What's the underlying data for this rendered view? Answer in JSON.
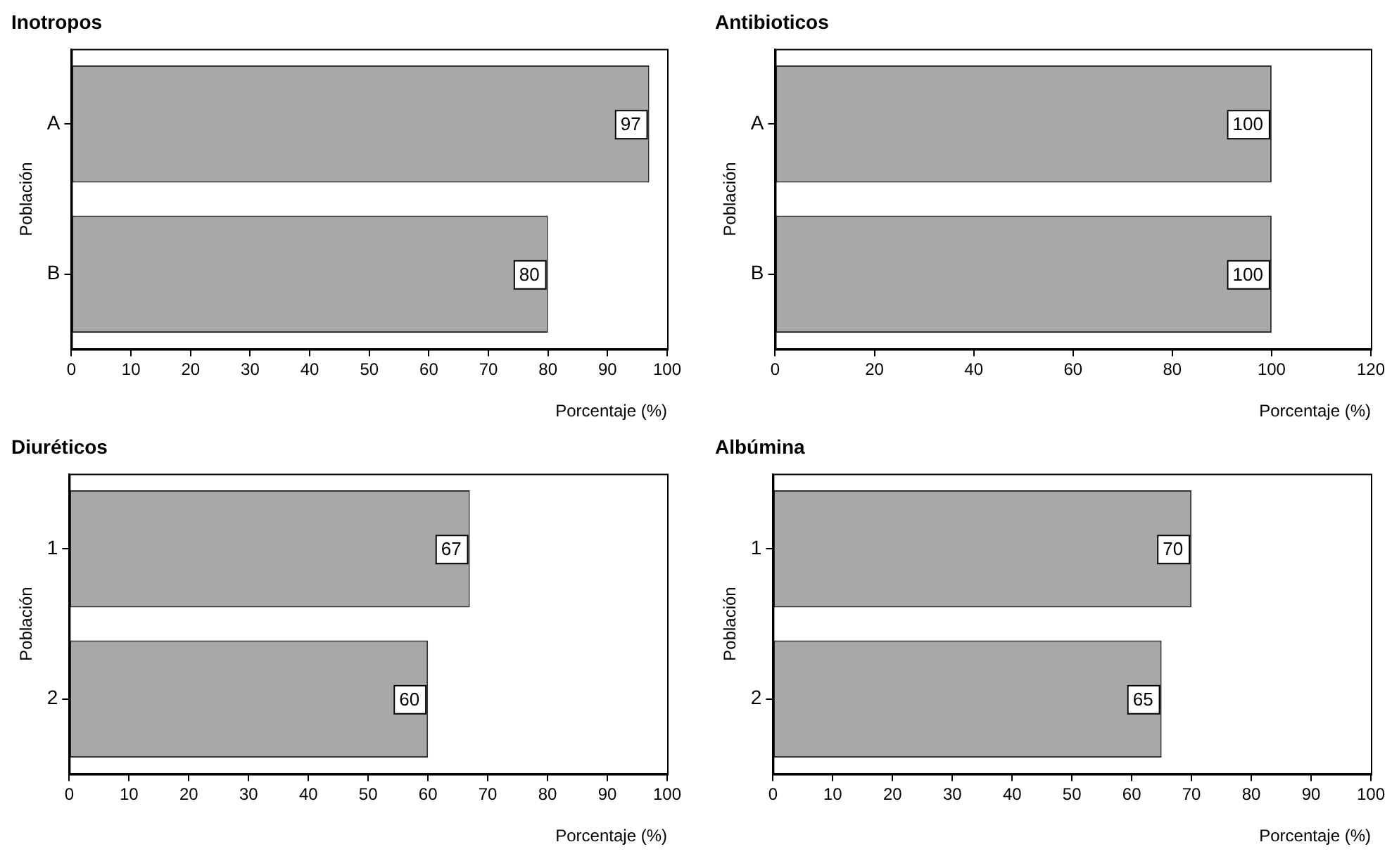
{
  "chart_data": [
    {
      "type": "bar",
      "orientation": "horizontal",
      "title": "Inotropos",
      "xlabel": "Porcentaje (%)",
      "ylabel": "Población",
      "categories": [
        "A",
        "B"
      ],
      "values": [
        97,
        80
      ],
      "color": "#a8a8a8",
      "xlim": [
        0,
        100
      ],
      "xticks": [
        0,
        10,
        20,
        30,
        40,
        50,
        60,
        70,
        80,
        90,
        100
      ],
      "data_labels": true,
      "grid": false
    },
    {
      "type": "bar",
      "orientation": "horizontal",
      "title": "Antibioticos",
      "xlabel": "Porcentaje (%)",
      "ylabel": "Población",
      "categories": [
        "A",
        "B"
      ],
      "values": [
        100,
        100
      ],
      "color": "#a8a8a8",
      "xlim": [
        0,
        120
      ],
      "xticks": [
        0,
        20,
        40,
        60,
        80,
        100,
        120
      ],
      "data_labels": true,
      "grid": false
    },
    {
      "type": "bar",
      "orientation": "horizontal",
      "title": "Diuréticos",
      "xlabel": "Porcentaje (%)",
      "ylabel": "Población",
      "categories": [
        "1",
        "2"
      ],
      "values": [
        67,
        60
      ],
      "color": "#a8a8a8",
      "xlim": [
        0,
        100
      ],
      "xticks": [
        0,
        10,
        20,
        30,
        40,
        50,
        60,
        70,
        80,
        90,
        100
      ],
      "data_labels": true,
      "grid": false
    },
    {
      "type": "bar",
      "orientation": "horizontal",
      "title": "Albúmina",
      "xlabel": "Porcentaje (%)",
      "ylabel": "Población",
      "categories": [
        "1",
        "2"
      ],
      "values": [
        70,
        65
      ],
      "color": "#a8a8a8",
      "xlim": [
        0,
        100
      ],
      "xticks": [
        0,
        10,
        20,
        30,
        40,
        50,
        60,
        70,
        80,
        90,
        100
      ],
      "data_labels": true,
      "grid": false
    }
  ]
}
